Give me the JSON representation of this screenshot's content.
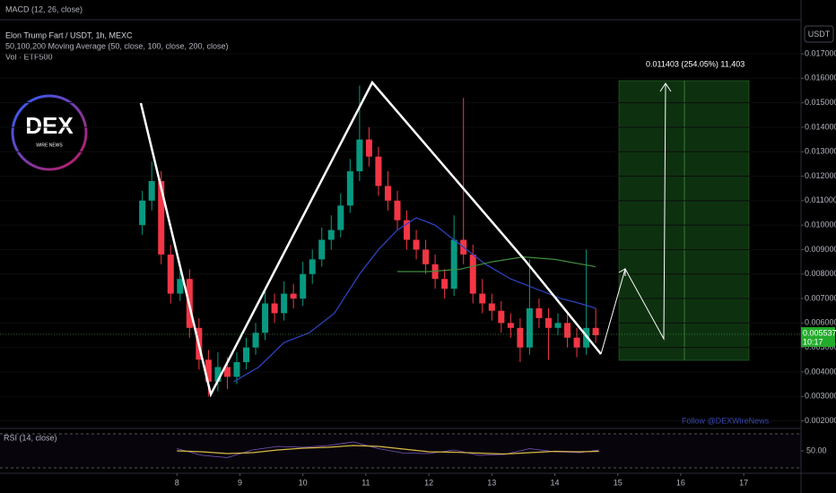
{
  "header": {
    "macd_label": "MACD (12, 26, close)",
    "currency": "USDT"
  },
  "chart_data": {
    "type": "candlestick",
    "title": "Elon Trump Fart / USDT, 1h, MEXC",
    "indicators": [
      "50,100,200 Moving Average (50, close, 100, close, 200, close)",
      "Vol · ETF500"
    ],
    "colors": {
      "up": "#089981",
      "down": "#f23645"
    },
    "xlim": [
      5.19,
      17.91
    ],
    "xticks": [
      8,
      9,
      10,
      11,
      12,
      13,
      14,
      15,
      16,
      17
    ],
    "ylim": [
      0.0018,
      0.0192
    ],
    "yticks": [
      {
        "value": 0.002,
        "label": "0.002000"
      },
      {
        "value": 0.003,
        "label": "0.003000"
      },
      {
        "value": 0.004,
        "label": "0.004000"
      },
      {
        "value": 0.005,
        "label": "0.005000"
      },
      {
        "value": 0.006,
        "label": "0.006000"
      },
      {
        "value": 0.007,
        "label": "0.007000"
      },
      {
        "value": 0.008,
        "label": "0.008000"
      },
      {
        "value": 0.009,
        "label": "0.009000"
      },
      {
        "value": 0.01,
        "label": "0.010000"
      },
      {
        "value": 0.011,
        "label": "0.011000"
      },
      {
        "value": 0.012,
        "label": "0.012000"
      },
      {
        "value": 0.013,
        "label": "0.013000"
      },
      {
        "value": 0.014,
        "label": "0.014000"
      },
      {
        "value": 0.015,
        "label": "0.015000"
      },
      {
        "value": 0.016,
        "label": "0.016000"
      },
      {
        "value": 0.017,
        "label": "0.017000"
      }
    ],
    "candles": [
      {
        "x": 7.45,
        "open": 0.01,
        "high": 0.0114,
        "low": 0.0096,
        "close": 0.011
      },
      {
        "x": 7.6,
        "open": 0.011,
        "high": 0.0126,
        "low": 0.0106,
        "close": 0.0118
      },
      {
        "x": 7.75,
        "open": 0.0118,
        "high": 0.0122,
        "low": 0.0084,
        "close": 0.0088
      },
      {
        "x": 7.9,
        "open": 0.0088,
        "high": 0.0092,
        "low": 0.0068,
        "close": 0.0072
      },
      {
        "x": 8.05,
        "open": 0.0072,
        "high": 0.0084,
        "low": 0.0069,
        "close": 0.0078
      },
      {
        "x": 8.2,
        "open": 0.0078,
        "high": 0.0082,
        "low": 0.0054,
        "close": 0.0058
      },
      {
        "x": 8.35,
        "open": 0.0058,
        "high": 0.0062,
        "low": 0.0041,
        "close": 0.0045
      },
      {
        "x": 8.5,
        "open": 0.0045,
        "high": 0.0049,
        "low": 0.003,
        "close": 0.0036
      },
      {
        "x": 8.65,
        "open": 0.0036,
        "high": 0.0048,
        "low": 0.0032,
        "close": 0.0042
      },
      {
        "x": 8.8,
        "open": 0.0042,
        "high": 0.0046,
        "low": 0.0033,
        "close": 0.0038
      },
      {
        "x": 8.95,
        "open": 0.0038,
        "high": 0.0048,
        "low": 0.0035,
        "close": 0.0044
      },
      {
        "x": 9.1,
        "open": 0.0044,
        "high": 0.0054,
        "low": 0.0041,
        "close": 0.005
      },
      {
        "x": 9.25,
        "open": 0.005,
        "high": 0.006,
        "low": 0.0047,
        "close": 0.0056
      },
      {
        "x": 9.4,
        "open": 0.0056,
        "high": 0.0073,
        "low": 0.0053,
        "close": 0.0068
      },
      {
        "x": 9.55,
        "open": 0.0068,
        "high": 0.0072,
        "low": 0.006,
        "close": 0.0064
      },
      {
        "x": 9.7,
        "open": 0.0064,
        "high": 0.0077,
        "low": 0.0061,
        "close": 0.0072
      },
      {
        "x": 9.85,
        "open": 0.0072,
        "high": 0.0076,
        "low": 0.0066,
        "close": 0.007
      },
      {
        "x": 10.0,
        "open": 0.007,
        "high": 0.0085,
        "low": 0.0067,
        "close": 0.008
      },
      {
        "x": 10.15,
        "open": 0.008,
        "high": 0.009,
        "low": 0.0076,
        "close": 0.0086
      },
      {
        "x": 10.3,
        "open": 0.0086,
        "high": 0.0099,
        "low": 0.0083,
        "close": 0.0094
      },
      {
        "x": 10.45,
        "open": 0.0094,
        "high": 0.0104,
        "low": 0.009,
        "close": 0.0098
      },
      {
        "x": 10.6,
        "open": 0.0098,
        "high": 0.0113,
        "low": 0.0095,
        "close": 0.0108
      },
      {
        "x": 10.75,
        "open": 0.0108,
        "high": 0.0127,
        "low": 0.0105,
        "close": 0.0122
      },
      {
        "x": 10.9,
        "open": 0.0122,
        "high": 0.0157,
        "low": 0.0118,
        "close": 0.0135
      },
      {
        "x": 11.05,
        "open": 0.0135,
        "high": 0.014,
        "low": 0.0124,
        "close": 0.0128
      },
      {
        "x": 11.2,
        "open": 0.0128,
        "high": 0.0132,
        "low": 0.0112,
        "close": 0.0116
      },
      {
        "x": 11.35,
        "open": 0.0116,
        "high": 0.0122,
        "low": 0.0106,
        "close": 0.011
      },
      {
        "x": 11.5,
        "open": 0.011,
        "high": 0.0114,
        "low": 0.0098,
        "close": 0.0102
      },
      {
        "x": 11.65,
        "open": 0.0102,
        "high": 0.0106,
        "low": 0.009,
        "close": 0.0094
      },
      {
        "x": 11.8,
        "open": 0.0094,
        "high": 0.0098,
        "low": 0.0086,
        "close": 0.009
      },
      {
        "x": 11.95,
        "open": 0.009,
        "high": 0.0094,
        "low": 0.008,
        "close": 0.0084
      },
      {
        "x": 12.1,
        "open": 0.0084,
        "high": 0.0088,
        "low": 0.0074,
        "close": 0.0078
      },
      {
        "x": 12.25,
        "open": 0.0078,
        "high": 0.0082,
        "low": 0.007,
        "close": 0.0074
      },
      {
        "x": 12.4,
        "open": 0.0074,
        "high": 0.0104,
        "low": 0.0071,
        "close": 0.0094
      },
      {
        "x": 12.55,
        "open": 0.0094,
        "high": 0.0152,
        "low": 0.0084,
        "close": 0.0088
      },
      {
        "x": 12.7,
        "open": 0.0088,
        "high": 0.0092,
        "low": 0.0068,
        "close": 0.0072
      },
      {
        "x": 12.85,
        "open": 0.0072,
        "high": 0.0078,
        "low": 0.0064,
        "close": 0.0068
      },
      {
        "x": 13.0,
        "open": 0.0068,
        "high": 0.0072,
        "low": 0.0061,
        "close": 0.0065
      },
      {
        "x": 13.15,
        "open": 0.0065,
        "high": 0.0069,
        "low": 0.0056,
        "close": 0.006
      },
      {
        "x": 13.3,
        "open": 0.006,
        "high": 0.0064,
        "low": 0.0054,
        "close": 0.0058
      },
      {
        "x": 13.45,
        "open": 0.0058,
        "high": 0.0062,
        "low": 0.0044,
        "close": 0.005
      },
      {
        "x": 13.6,
        "open": 0.005,
        "high": 0.0086,
        "low": 0.0047,
        "close": 0.0066
      },
      {
        "x": 13.75,
        "open": 0.0066,
        "high": 0.007,
        "low": 0.0058,
        "close": 0.0062
      },
      {
        "x": 13.9,
        "open": 0.0062,
        "high": 0.0066,
        "low": 0.0045,
        "close": 0.0058
      },
      {
        "x": 14.05,
        "open": 0.0058,
        "high": 0.0064,
        "low": 0.0055,
        "close": 0.006
      },
      {
        "x": 14.2,
        "open": 0.006,
        "high": 0.0064,
        "low": 0.005,
        "close": 0.0054
      },
      {
        "x": 14.35,
        "open": 0.0054,
        "high": 0.0058,
        "low": 0.0046,
        "close": 0.005
      },
      {
        "x": 14.5,
        "open": 0.005,
        "high": 0.009,
        "low": 0.0047,
        "close": 0.0058
      },
      {
        "x": 14.65,
        "open": 0.0058,
        "high": 0.0066,
        "low": 0.0052,
        "close": 0.0055
      }
    ],
    "moving_averages": [
      {
        "color": "#2f45c8",
        "x": [
          8.9,
          9.3,
          9.7,
          10.1,
          10.5,
          10.9,
          11.2,
          11.5,
          11.8,
          12.1,
          12.5,
          12.9,
          13.3,
          13.7,
          14.1,
          14.4,
          14.65
        ],
        "values": [
          0.0036,
          0.0042,
          0.0052,
          0.0056,
          0.0064,
          0.008,
          0.009,
          0.0098,
          0.0103,
          0.01,
          0.0092,
          0.0084,
          0.0078,
          0.0074,
          0.007,
          0.0068,
          0.0066
        ]
      },
      {
        "color": "#3f8f3f",
        "x": [
          11.5,
          12.0,
          12.5,
          13.0,
          13.5,
          14.0,
          14.65
        ],
        "values": [
          0.0081,
          0.0081,
          0.0082,
          0.0085,
          0.0087,
          0.0086,
          0.0083
        ]
      }
    ],
    "current_price": {
      "value": 0.005537,
      "label": "0.005537"
    },
    "countdown": "10:17",
    "position_label": "0.011403 (254.05%) 11,403",
    "watermark": "Follow @DEXWireNews",
    "logo": {
      "text": "DEX",
      "subtext": "WIRE NEWS"
    },
    "rsi": {
      "title": "RSI (14, close)",
      "ylim": [
        0,
        100
      ],
      "yticks": [
        {
          "value": 50,
          "label": "50.00"
        }
      ],
      "color": "#7e57c2",
      "ma_color": "#e0c040",
      "x": [
        8.0,
        8.4,
        8.8,
        9.2,
        9.6,
        10.0,
        10.4,
        10.8,
        11.2,
        11.6,
        12.0,
        12.4,
        12.8,
        13.2,
        13.6,
        14.0,
        14.4,
        14.7
      ],
      "values": [
        55,
        40,
        35,
        52,
        60,
        58,
        62,
        70,
        55,
        45,
        44,
        52,
        40,
        42,
        55,
        48,
        46,
        52
      ],
      "ma_values": [
        50,
        48,
        44,
        46,
        52,
        56,
        58,
        62,
        60,
        54,
        48,
        47,
        45,
        43,
        46,
        49,
        48,
        49
      ]
    }
  }
}
